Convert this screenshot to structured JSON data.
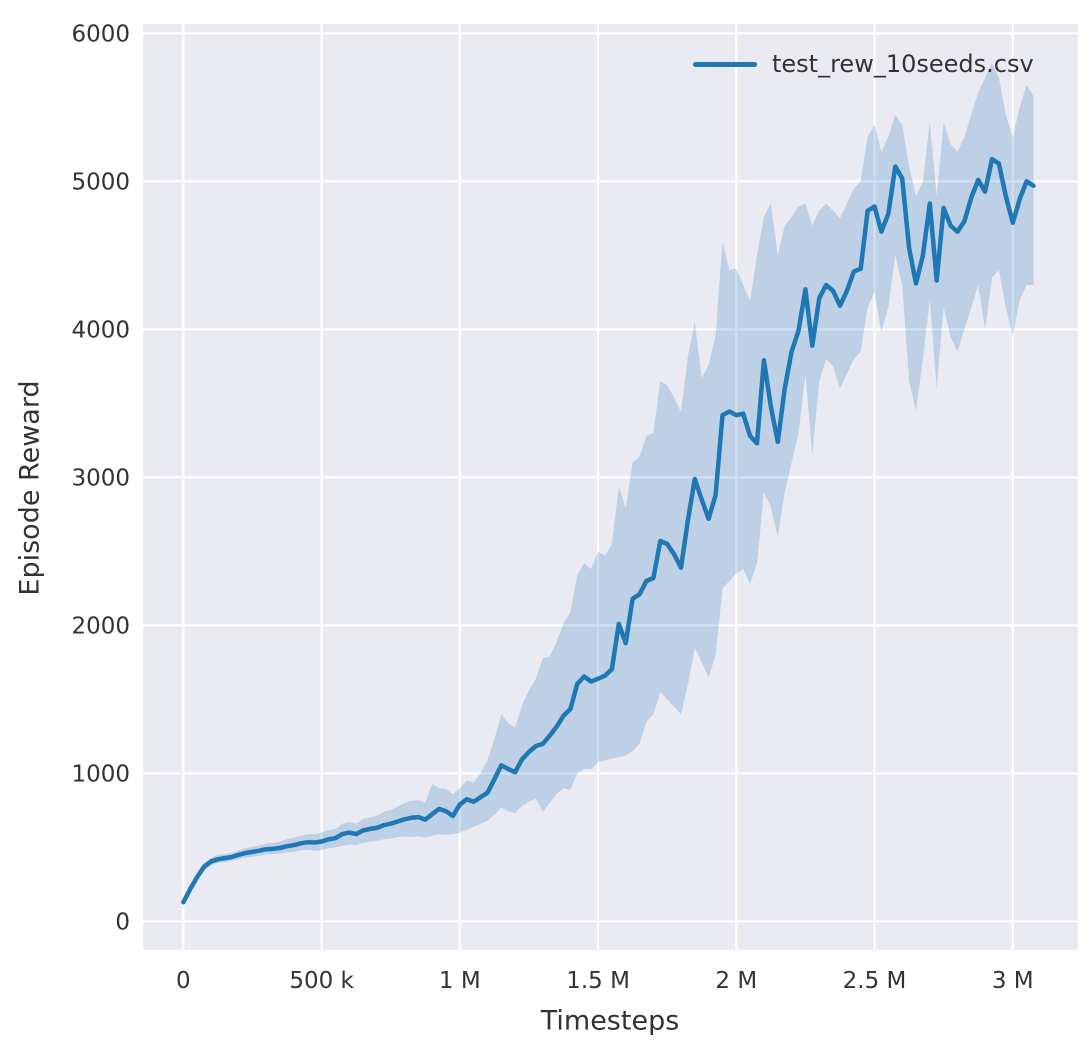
{
  "chart_data": {
    "type": "line",
    "title": "",
    "xlabel": "Timesteps",
    "ylabel": "Episode Reward",
    "grid": true,
    "legend_position": "upper right",
    "legend": [
      {
        "label": "test_rew_10seeds.csv",
        "color": "#1f77b4"
      }
    ],
    "x_ticks": {
      "values_k": [
        0,
        500,
        1000,
        1500,
        2000,
        2500,
        3000
      ],
      "labels": [
        "0",
        "500 k",
        "1 M",
        "1.5 M",
        "2 M",
        "2.5 M",
        "3 M"
      ]
    },
    "y_ticks": {
      "values": [
        0,
        1000,
        2000,
        3000,
        4000,
        5000,
        6000
      ],
      "labels": [
        "0",
        "1000",
        "2000",
        "3000",
        "4000",
        "5000",
        "6000"
      ]
    },
    "xlim_k": [
      -146,
      3236
    ],
    "ylim": [
      -193,
      6063
    ],
    "x_unit": "timesteps, stored in thousands (k)",
    "series": [
      {
        "name": "test_rew_10seeds.csv",
        "x_start_k": 0,
        "x_step_k": 25,
        "mean": [
          130,
          220,
          300,
          370,
          405,
          420,
          428,
          435,
          450,
          462,
          470,
          478,
          488,
          490,
          497,
          508,
          515,
          528,
          535,
          533,
          540,
          555,
          562,
          590,
          600,
          590,
          615,
          625,
          632,
          650,
          660,
          675,
          690,
          700,
          705,
          688,
          725,
          760,
          745,
          712,
          790,
          825,
          808,
          840,
          870,
          960,
          1055,
          1030,
          1008,
          1095,
          1145,
          1185,
          1200,
          1255,
          1315,
          1390,
          1435,
          1605,
          1655,
          1620,
          1640,
          1660,
          1705,
          2010,
          1880,
          2180,
          2210,
          2300,
          2320,
          2570,
          2550,
          2480,
          2390,
          2710,
          2990,
          2850,
          2720,
          2880,
          3420,
          3445,
          3420,
          3430,
          3280,
          3230,
          3790,
          3480,
          3240,
          3600,
          3850,
          3990,
          4270,
          3890,
          4210,
          4300,
          4260,
          4160,
          4260,
          4390,
          4410,
          4800,
          4830,
          4660,
          4780,
          5100,
          5020,
          4550,
          4310,
          4500,
          4850,
          4330,
          4820,
          4700,
          4660,
          4730,
          4890,
          5010,
          4930,
          5150,
          5120,
          4900,
          4720,
          4880,
          5000,
          4970
        ],
        "band_lower": [
          120,
          205,
          280,
          345,
          380,
          395,
          400,
          408,
          420,
          430,
          438,
          445,
          452,
          455,
          458,
          465,
          470,
          480,
          483,
          478,
          482,
          495,
          500,
          510,
          520,
          515,
          530,
          540,
          545,
          555,
          560,
          570,
          575,
          570,
          575,
          565,
          580,
          590,
          585,
          590,
          600,
          620,
          640,
          660,
          680,
          720,
          770,
          745,
          730,
          780,
          810,
          830,
          740,
          800,
          860,
          900,
          890,
          1000,
          1030,
          1030,
          1075,
          1090,
          1100,
          1110,
          1120,
          1150,
          1200,
          1350,
          1400,
          1550,
          1500,
          1450,
          1400,
          1600,
          1850,
          1750,
          1650,
          1800,
          2250,
          2300,
          2350,
          2380,
          2280,
          2420,
          2900,
          2800,
          2600,
          2900,
          3100,
          3300,
          3700,
          3150,
          3650,
          3800,
          3750,
          3600,
          3700,
          3800,
          3850,
          4150,
          4250,
          3980,
          4150,
          4500,
          4300,
          3650,
          3450,
          3800,
          4200,
          3600,
          4150,
          3950,
          3850,
          4000,
          4150,
          4300,
          4000,
          4350,
          4400,
          4150,
          3950,
          4200,
          4300,
          4300
        ],
        "band_upper": [
          140,
          240,
          325,
          395,
          430,
          450,
          455,
          462,
          480,
          495,
          505,
          512,
          525,
          530,
          540,
          555,
          565,
          580,
          590,
          588,
          600,
          615,
          625,
          660,
          670,
          660,
          690,
          705,
          715,
          740,
          755,
          775,
          800,
          815,
          820,
          800,
          930,
          900,
          895,
          860,
          900,
          950,
          940,
          1000,
          1090,
          1230,
          1400,
          1340,
          1310,
          1460,
          1560,
          1640,
          1780,
          1790,
          1890,
          2010,
          2090,
          2340,
          2420,
          2380,
          2500,
          2470,
          2550,
          2940,
          2790,
          3100,
          3140,
          3280,
          3300,
          3650,
          3620,
          3540,
          3440,
          3820,
          4050,
          3670,
          3760,
          3960,
          4590,
          4400,
          4410,
          4300,
          4190,
          4500,
          4760,
          4850,
          4500,
          4700,
          4760,
          4830,
          4850,
          4700,
          4800,
          4850,
          4800,
          4750,
          4850,
          4950,
          5000,
          5300,
          5380,
          5200,
          5300,
          5450,
          5380,
          5100,
          4900,
          5000,
          5400,
          4900,
          5400,
          5250,
          5200,
          5300,
          5450,
          5600,
          5700,
          5800,
          5700,
          5450,
          5300,
          5500,
          5650,
          5575
        ]
      }
    ],
    "colors": {
      "line": "#1f77b4",
      "band": "#1f77b4",
      "band_opacity": 0.22,
      "plot_bg": "#eaeaf2",
      "grid": "#ffffff",
      "figure_bg": "#ffffff",
      "text": "#333333"
    }
  }
}
